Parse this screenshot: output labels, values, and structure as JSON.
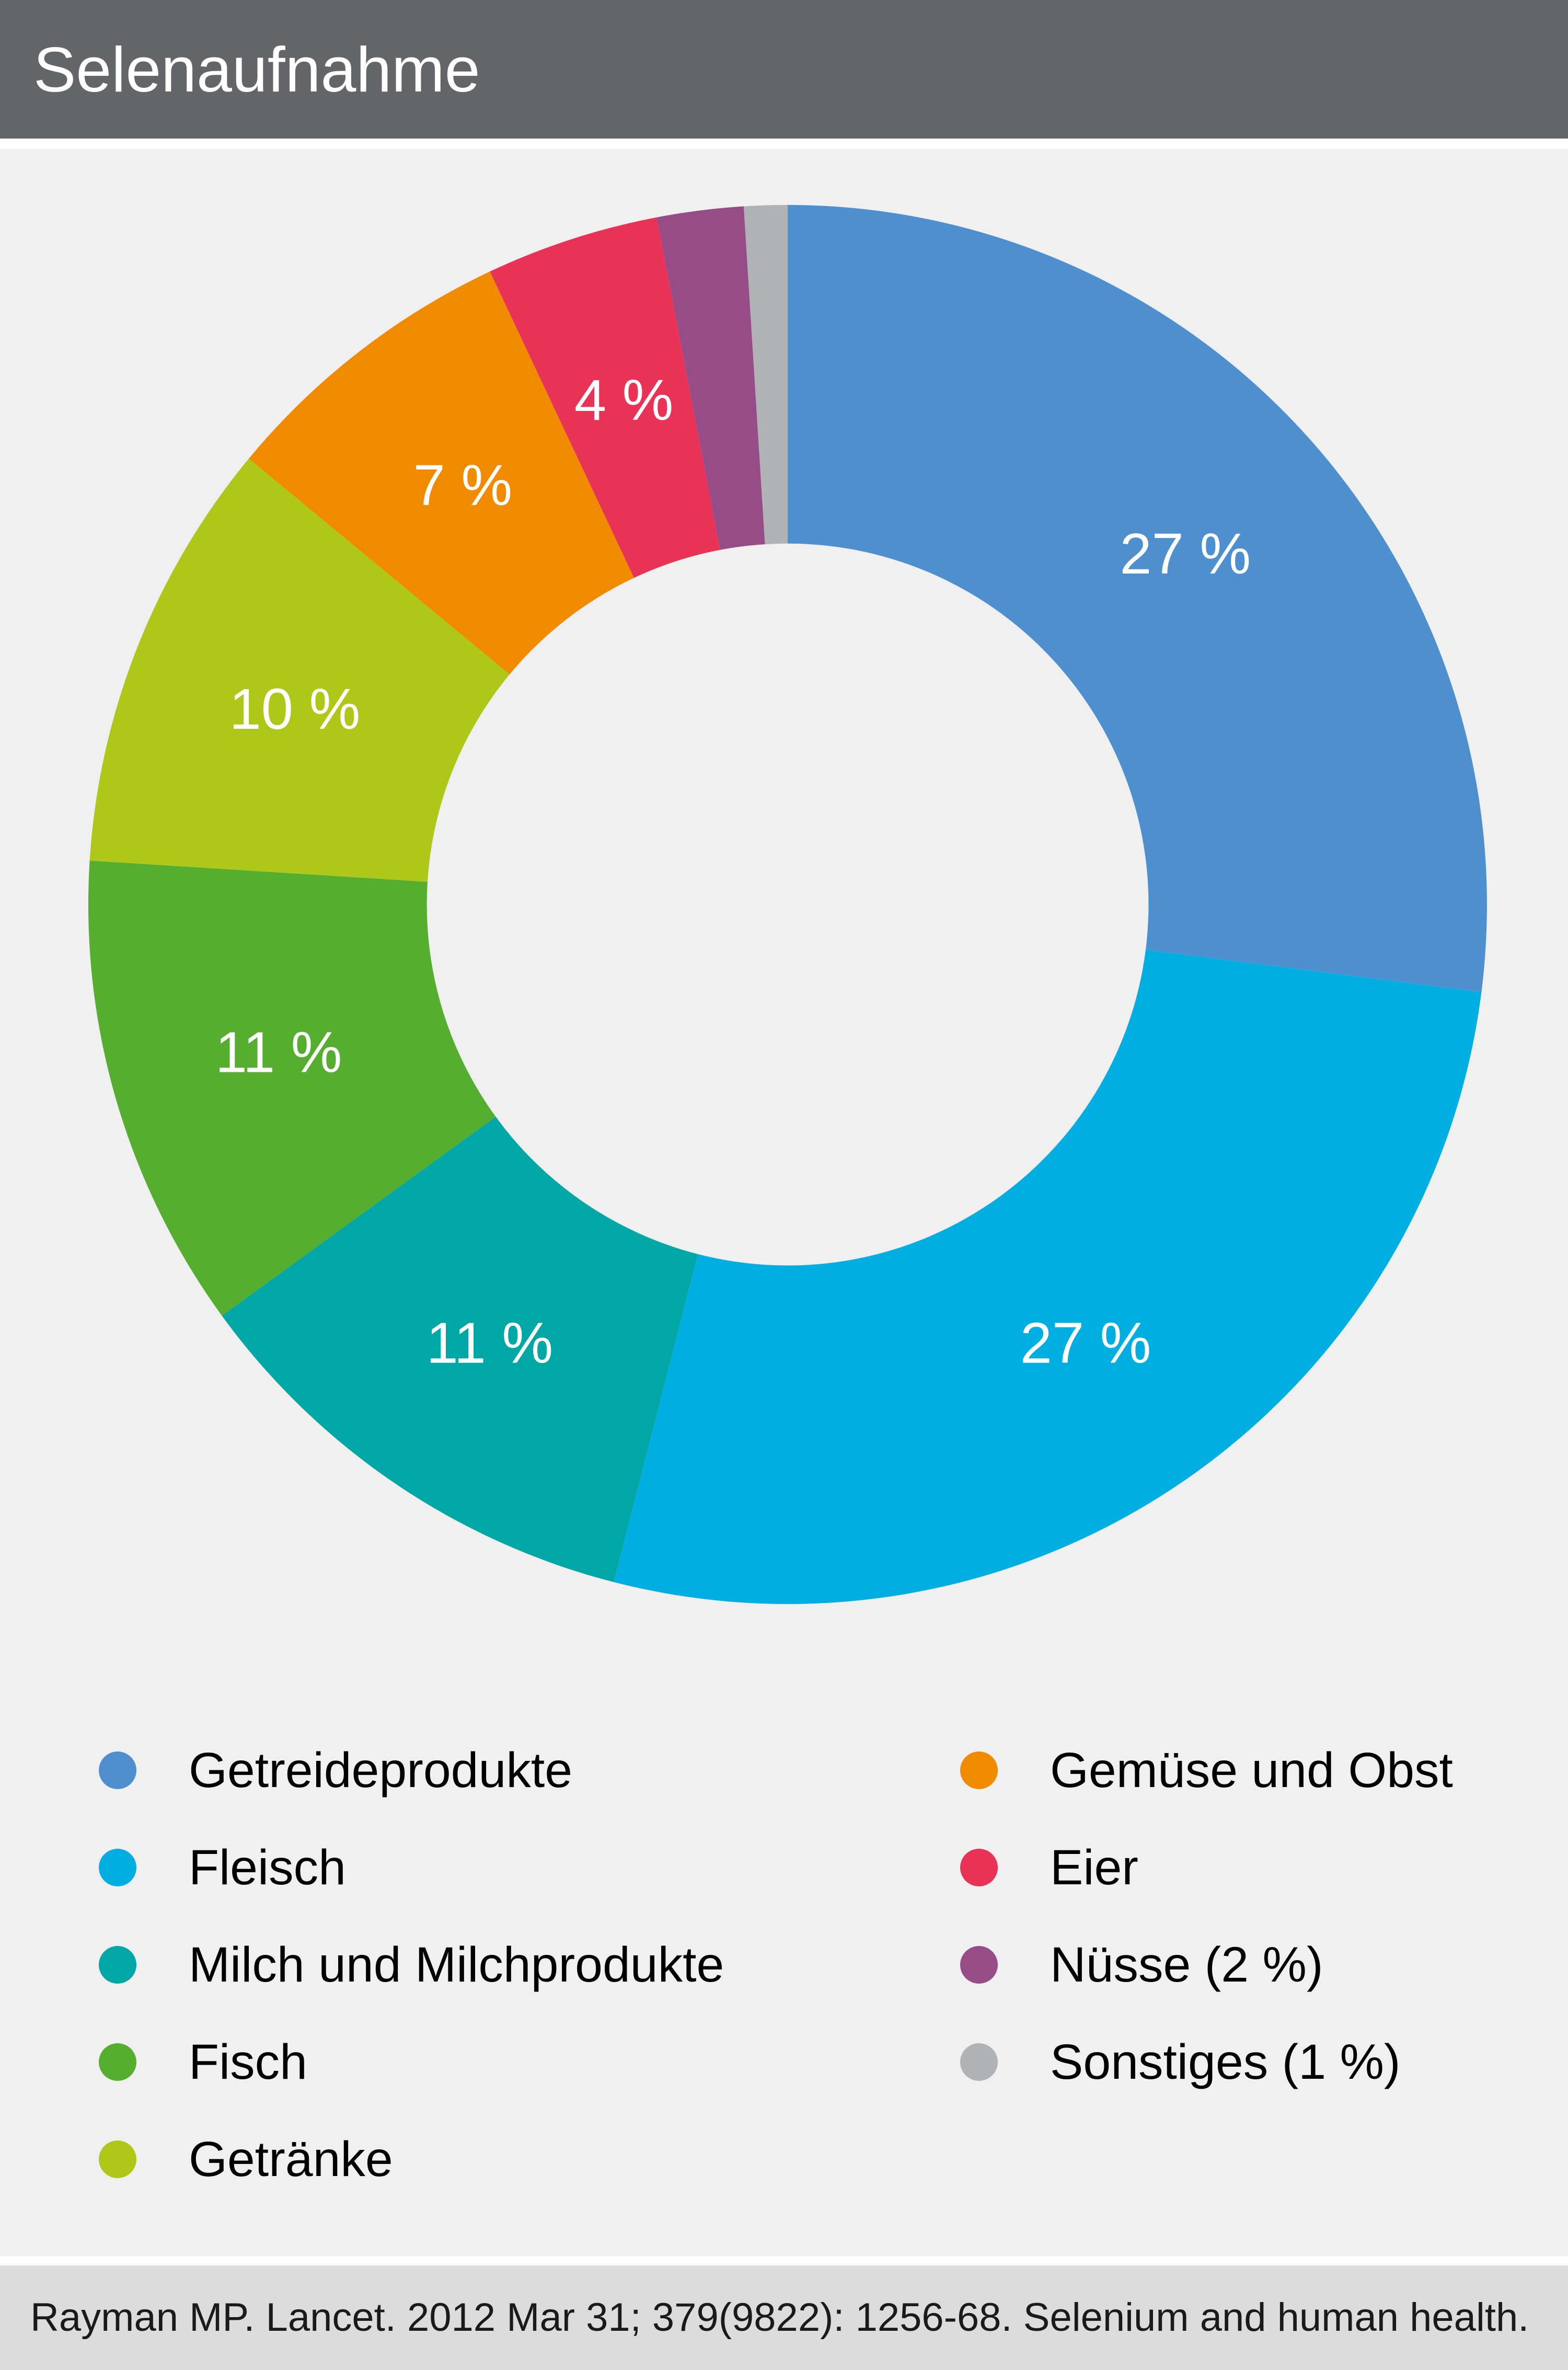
{
  "header": {
    "title": "Selenaufnahme",
    "bg": "#646569",
    "text_color": "#ffffff"
  },
  "chart_data": {
    "type": "pie",
    "donut": true,
    "title": "Selenaufnahme",
    "direction": "clockwise",
    "start_angle_deg": 0,
    "inner_radius_ratio": 0.516,
    "categories": [
      "Getreideprodukte",
      "Fleisch",
      "Milch und Milchprodukte",
      "Fisch",
      "Getränke",
      "Gemüse und Obst",
      "Eier",
      "Nüsse",
      "Sonstiges"
    ],
    "values": [
      27,
      27,
      11,
      11,
      10,
      7,
      4,
      2,
      1
    ],
    "colors": [
      "#4e90cf",
      "#00aee2",
      "#00a7a5",
      "#55ae2f",
      "#aec718",
      "#f08b00",
      "#e83356",
      "#964c87",
      "#b0b3b5"
    ],
    "slice_labels": [
      "27 %",
      "27 %",
      "11 %",
      "11 %",
      "10 %",
      "7 %",
      "4 %",
      "",
      ""
    ],
    "slice_label_color": "#ffffff",
    "legend_position": "bottom",
    "background": "#f0f0f0"
  },
  "legend": {
    "columns": [
      {
        "items": [
          {
            "label": "Getreideprodukte",
            "color": "#4e90cf"
          },
          {
            "label": "Fleisch",
            "color": "#00aee2"
          },
          {
            "label": "Milch und Milchprodukte",
            "color": "#00a7a5"
          },
          {
            "label": "Fisch",
            "color": "#55ae2f"
          },
          {
            "label": "Getränke",
            "color": "#aec718"
          }
        ]
      },
      {
        "items": [
          {
            "label": "Gemüse und Obst",
            "color": "#f08b00"
          },
          {
            "label": "Eier",
            "color": "#e83356"
          },
          {
            "label": "Nüsse (2 %)",
            "color": "#964c87"
          },
          {
            "label": "Sonstiges (1 %)",
            "color": "#b0b3b5"
          }
        ]
      }
    ]
  },
  "footer": {
    "citation": "Rayman MP. Lancet. 2012 Mar 31; 379(9822): 1256-68. Selenium and human health.",
    "bg": "#dcdcdc"
  }
}
